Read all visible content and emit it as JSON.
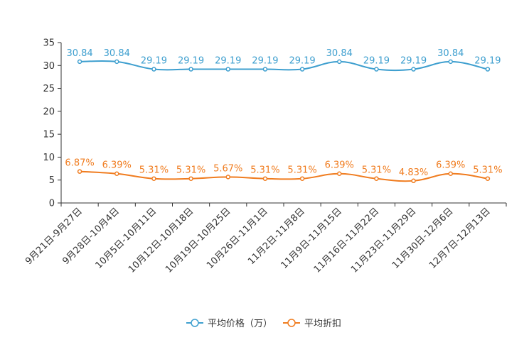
{
  "chart_data": {
    "type": "line",
    "title": "",
    "xlabel": "",
    "ylabel": "",
    "ylim": [
      0,
      35
    ],
    "yticks": [
      0,
      5,
      10,
      15,
      20,
      25,
      30,
      35
    ],
    "categories": [
      "9月21日-9月27日",
      "9月28日-10月4日",
      "10月5日-10月11日",
      "10月12日-10月18日",
      "10月19日-10月25日",
      "10月26日-11月1日",
      "11月2日-11月8日",
      "11月9日-11月15日",
      "11月16日-11月22日",
      "11月23日-11月29日",
      "11月30日-12月6日",
      "12月7日-12月13日"
    ],
    "series": [
      {
        "name": "平均价格（万）",
        "color": "#3e9fcf",
        "values": [
          30.84,
          30.84,
          29.19,
          29.19,
          29.19,
          29.19,
          29.19,
          30.84,
          29.19,
          29.19,
          30.84,
          29.19
        ],
        "labels": [
          "30.84",
          "30.84",
          "29.19",
          "29.19",
          "29.19",
          "29.19",
          "29.19",
          "30.84",
          "29.19",
          "29.19",
          "30.84",
          "29.19"
        ]
      },
      {
        "name": "平均折扣",
        "color": "#f07c1f",
        "values": [
          6.87,
          6.39,
          5.31,
          5.31,
          5.67,
          5.31,
          5.31,
          6.39,
          5.31,
          4.83,
          6.39,
          5.31
        ],
        "labels": [
          "6.87%",
          "6.39%",
          "5.31%",
          "5.31%",
          "5.67%",
          "5.31%",
          "5.31%",
          "6.39%",
          "5.31%",
          "4.83%",
          "6.39%",
          "5.31%"
        ]
      }
    ],
    "legend": "bottom-center",
    "grid": false
  }
}
